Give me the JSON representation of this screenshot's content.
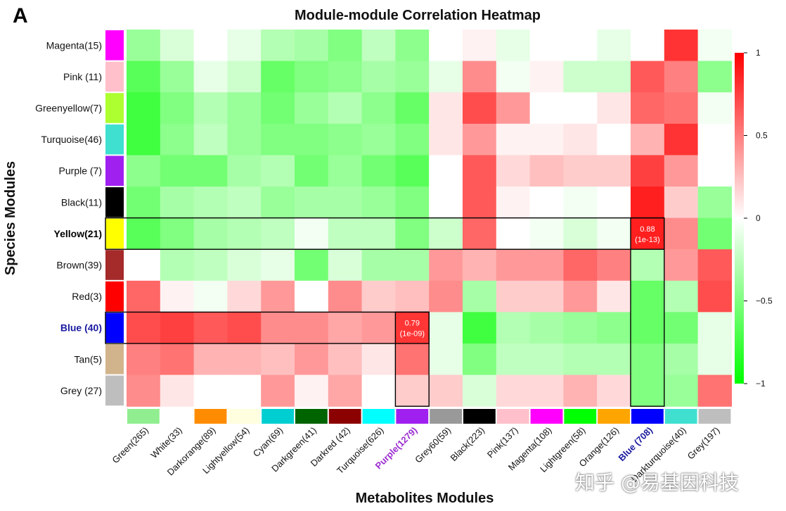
{
  "chart_data": {
    "type": "heatmap",
    "panel_label": "A",
    "title": "Module-module Correlation Heatmap",
    "xlabel": "Metabolites Modules",
    "ylabel": "Species Modules",
    "rows": [
      {
        "label": "Magenta(15)",
        "color": "#ff00ff",
        "style": "normal"
      },
      {
        "label": "Pink (11)",
        "color": "#ffc0cb",
        "style": "normal"
      },
      {
        "label": "Greenyellow(7)",
        "color": "#adff2f",
        "style": "normal"
      },
      {
        "label": "Turquoise(46)",
        "color": "#40e0d0",
        "style": "normal"
      },
      {
        "label": "Purple (7)",
        "color": "#a020f0",
        "style": "normal"
      },
      {
        "label": "Black(11)",
        "color": "#000000",
        "style": "normal"
      },
      {
        "label": "Yellow(21)",
        "color": "#ffff00",
        "style": "bold"
      },
      {
        "label": "Brown(39)",
        "color": "#a52a2a",
        "style": "normal"
      },
      {
        "label": "Red(3)",
        "color": "#ff0000",
        "style": "normal"
      },
      {
        "label": "Blue (40)",
        "color": "#0000ff",
        "style": "blue-bold"
      },
      {
        "label": "Tan(5)",
        "color": "#d2b48c",
        "style": "normal"
      },
      {
        "label": "Grey (27)",
        "color": "#bebebe",
        "style": "normal"
      }
    ],
    "columns": [
      {
        "label": "Green(265)",
        "color": "#90ee90",
        "style": "normal"
      },
      {
        "label": "White(33)",
        "color": "#ffffff",
        "style": "normal"
      },
      {
        "label": "Darkorange(89)",
        "color": "#ff8c00",
        "style": "normal"
      },
      {
        "label": "Lightyellow(54)",
        "color": "#ffffe0",
        "style": "normal"
      },
      {
        "label": "Cyan(69)",
        "color": "#00ced1",
        "style": "normal"
      },
      {
        "label": "Darkgreen(41)",
        "color": "#006400",
        "style": "normal"
      },
      {
        "label": "Darkred (42)",
        "color": "#8b0000",
        "style": "normal"
      },
      {
        "label": "Turquoise(626)",
        "color": "#00ffff",
        "style": "normal"
      },
      {
        "label": "Purple(1279)",
        "color": "#a020f0",
        "style": "purple-bold"
      },
      {
        "label": "Grey60(59)",
        "color": "#999999",
        "style": "normal"
      },
      {
        "label": "Black(223)",
        "color": "#000000",
        "style": "normal"
      },
      {
        "label": "Pink(137)",
        "color": "#ffc0cb",
        "style": "normal"
      },
      {
        "label": "Magenta(108)",
        "color": "#ff00ff",
        "style": "normal"
      },
      {
        "label": "Lightgreen(58)",
        "color": "#00ff00",
        "style": "normal"
      },
      {
        "label": "Orange(126)",
        "color": "#ffa500",
        "style": "normal"
      },
      {
        "label": "Blue (708)",
        "color": "#0000ff",
        "style": "blue-bold"
      },
      {
        "label": "Darkturquoise(40)",
        "color": "#40e0d0",
        "style": "normal"
      },
      {
        "label": "Grey(197)",
        "color": "#bebebe",
        "style": "normal"
      }
    ],
    "values": [
      [
        -0.4,
        -0.15,
        0.0,
        -0.1,
        -0.3,
        -0.35,
        -0.5,
        -0.25,
        -0.45,
        0.0,
        0.05,
        -0.1,
        0.0,
        0.0,
        -0.1,
        0.0,
        0.8,
        -0.05
      ],
      [
        -0.65,
        -0.4,
        -0.1,
        -0.2,
        -0.6,
        -0.5,
        -0.45,
        -0.35,
        -0.4,
        -0.1,
        0.45,
        -0.05,
        0.05,
        -0.2,
        -0.2,
        0.65,
        0.5,
        -0.45
      ],
      [
        -0.75,
        -0.5,
        -0.3,
        -0.4,
        -0.55,
        -0.4,
        -0.3,
        -0.45,
        -0.6,
        0.1,
        0.7,
        0.4,
        0.0,
        0.0,
        0.1,
        0.6,
        0.55,
        -0.05
      ],
      [
        -0.75,
        -0.45,
        -0.25,
        -0.4,
        -0.5,
        -0.5,
        -0.45,
        -0.4,
        -0.5,
        0.1,
        0.4,
        0.05,
        0.05,
        0.1,
        0.0,
        0.3,
        0.8,
        0.0
      ],
      [
        -0.45,
        -0.55,
        -0.55,
        -0.35,
        -0.3,
        -0.55,
        -0.4,
        -0.55,
        -0.65,
        0.0,
        0.65,
        0.15,
        0.25,
        0.2,
        0.2,
        0.75,
        0.4,
        0.0
      ],
      [
        -0.55,
        -0.35,
        -0.3,
        -0.25,
        -0.4,
        -0.35,
        -0.35,
        -0.4,
        -0.5,
        0.0,
        0.65,
        0.05,
        0.0,
        -0.05,
        0.0,
        0.88,
        0.2,
        -0.4
      ],
      [
        -0.65,
        -0.5,
        -0.35,
        -0.3,
        -0.25,
        -0.05,
        -0.25,
        -0.25,
        -0.5,
        -0.2,
        0.6,
        0.0,
        -0.05,
        -0.15,
        -0.05,
        0.88,
        0.45,
        -0.55
      ],
      [
        0.0,
        -0.3,
        -0.25,
        -0.15,
        -0.1,
        -0.55,
        -0.15,
        -0.35,
        -0.35,
        0.4,
        0.3,
        0.4,
        0.4,
        0.6,
        0.5,
        -0.3,
        0.4,
        0.65
      ],
      [
        0.6,
        0.05,
        -0.05,
        0.15,
        0.4,
        0.0,
        0.45,
        0.2,
        0.25,
        0.45,
        -0.35,
        0.2,
        0.2,
        0.4,
        0.1,
        -0.6,
        -0.3,
        0.7
      ],
      [
        0.7,
        0.75,
        0.65,
        0.7,
        0.45,
        0.45,
        0.35,
        0.4,
        0.79,
        -0.1,
        -0.75,
        -0.3,
        -0.35,
        -0.4,
        -0.45,
        -0.6,
        -0.55,
        -0.1
      ],
      [
        0.5,
        0.55,
        0.3,
        0.3,
        0.25,
        0.4,
        0.25,
        0.1,
        0.55,
        -0.1,
        -0.5,
        -0.25,
        -0.25,
        -0.3,
        -0.3,
        -0.5,
        -0.35,
        -0.1
      ],
      [
        0.45,
        0.1,
        0.0,
        0.0,
        0.4,
        0.05,
        0.35,
        0.0,
        0.2,
        0.2,
        -0.15,
        0.15,
        0.15,
        0.3,
        0.15,
        -0.5,
        -0.4,
        0.55
      ]
    ],
    "annotations": [
      {
        "row": 6,
        "col": 15,
        "text": "0.88",
        "subtext": "(1e-13)"
      },
      {
        "row": 9,
        "col": 8,
        "text": "0.79",
        "subtext": "(1e-09)"
      }
    ],
    "highlight_boxes": [
      {
        "row_start": 6,
        "row_end": 6,
        "col_start": -1,
        "col_end": 15
      },
      {
        "row_start": 6,
        "row_end": 11,
        "col_start": 15,
        "col_end": 15
      },
      {
        "row_start": 9,
        "row_end": 9,
        "col_start": -1,
        "col_end": 8
      },
      {
        "row_start": 9,
        "row_end": 11,
        "col_start": 8,
        "col_end": 8
      }
    ],
    "colorbar": {
      "range": [
        -1,
        1
      ],
      "ticks": [
        1,
        0.5,
        0,
        -0.5,
        -1
      ],
      "tick_labels": [
        "1",
        "0.5",
        "0",
        "−0.5",
        "−1"
      ],
      "low_color": "#00ff00",
      "mid_color": "#ffffff",
      "high_color": "#ff0000"
    }
  },
  "watermark": "知乎 @易基因科技"
}
